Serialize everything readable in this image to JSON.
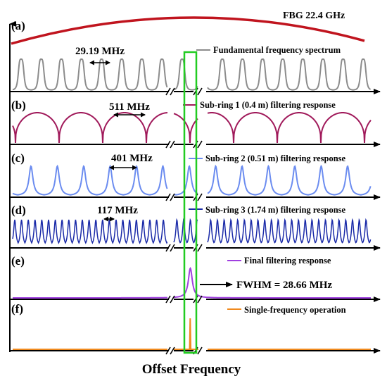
{
  "figure": {
    "axis_title": "Offset Frequency",
    "fbg_label": "FBG 22.4 GHz",
    "highlight_color": "#22cc22",
    "fbg_color": "#c0141e"
  },
  "panels": [
    {
      "id": "a",
      "letter": "(a)",
      "legend": "Fundamental frequency spectrum",
      "spacing": "29.19 MHz",
      "color": "#8c8c8c",
      "shape": "narrow-peaks"
    },
    {
      "id": "b",
      "letter": "(b)",
      "legend": "Sub-ring 1 (0.4 m) filtering response",
      "spacing": "511 MHz",
      "color": "#a0195a",
      "shape": "broad-arches"
    },
    {
      "id": "c",
      "letter": "(c)",
      "legend": "Sub-ring 2 (0.51 m) filtering response",
      "spacing": "401 MHz",
      "color": "#6b8cf0",
      "shape": "narrow-peaks"
    },
    {
      "id": "d",
      "letter": "(d)",
      "legend": "Sub-ring 3 (1.74 m) filtering response",
      "spacing": "117 MHz",
      "color": "#1a2aa8",
      "shape": "dense-peaks"
    },
    {
      "id": "e",
      "letter": "(e)",
      "legend": "Final filtering response",
      "annotation": "FWHM = 28.66 MHz",
      "color": "#a040e0",
      "shape": "single-peak"
    },
    {
      "id": "f",
      "letter": "(f)",
      "legend": "Single-frequency operation",
      "color": "#f08a1e",
      "shape": "single-line"
    }
  ]
}
